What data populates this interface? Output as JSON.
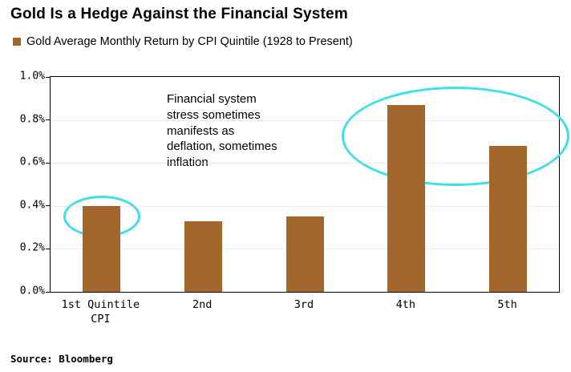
{
  "page": {
    "title": "Gold Is a Hedge Against the Financial System",
    "source": "Source: Bloomberg"
  },
  "legend": {
    "swatch_color": "#A3662B",
    "label": "Gold Average Monthly Return by CPI Quintile (1928 to Present)"
  },
  "chart_data": {
    "type": "bar",
    "title": "Gold Is a Hedge Against the Financial System",
    "series_name": "Gold Average Monthly Return by CPI Quintile (1928 to Present)",
    "categories": [
      "1st Quintile\nCPI",
      "2nd",
      "3rd",
      "4th",
      "5th"
    ],
    "values": [
      0.4,
      0.33,
      0.35,
      0.87,
      0.68
    ],
    "value_unit": "%",
    "xlabel": "",
    "ylabel": "",
    "ylim": [
      0,
      1.0
    ],
    "yticks": [
      "0.0%",
      "0.2%",
      "0.4%",
      "0.6%",
      "0.8%",
      "1.0%"
    ],
    "grid": "faint dotted horizontal gridlines",
    "legend_position": "top-left",
    "bar_color": "#A3662B",
    "highlight_color": "#3FDFE8",
    "annotation": "Financial system\nstress sometimes\nmanifests as\ndeflation, sometimes\ninflation",
    "highlights": [
      "cyan ellipse around top of 1st Quintile CPI bar",
      "cyan ellipse around tops of 4th and 5th bars"
    ]
  }
}
